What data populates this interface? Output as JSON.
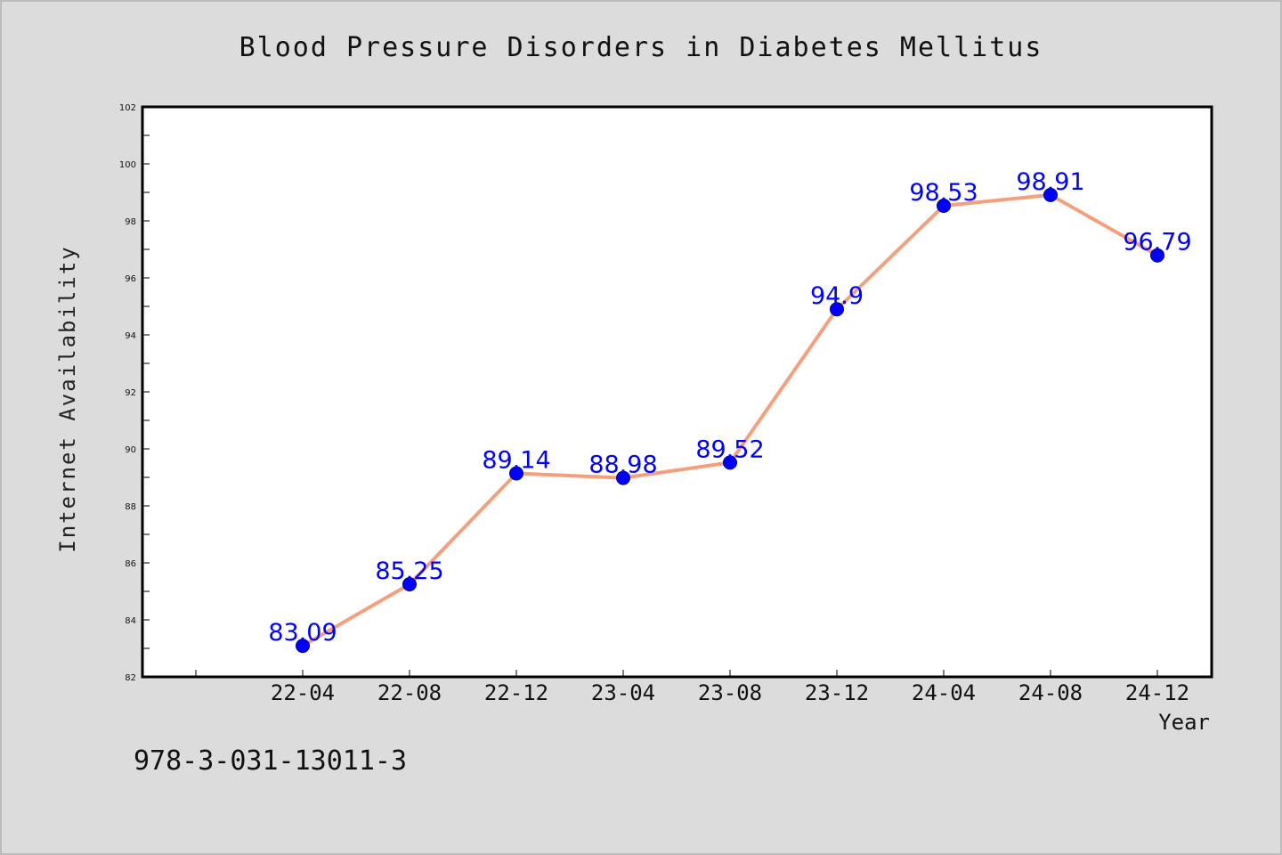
{
  "colors": {
    "background": "#dcdcdc",
    "plot_background": "#ffffff",
    "line": "#f4a07c",
    "marker": "#0000ff",
    "data_label": "#0000ff"
  },
  "footer_text": "978-3-031-13011-3",
  "chart_data": {
    "type": "line",
    "title": "Blood Pressure Disorders in Diabetes Mellitus",
    "xlabel": "Year",
    "ylabel": "Internet Availability",
    "categories": [
      "22-04",
      "22-08",
      "22-12",
      "23-04",
      "23-08",
      "23-12",
      "24-04",
      "24-08",
      "24-12"
    ],
    "series": [
      {
        "values": [
          83.09,
          85.25,
          89.14,
          88.98,
          89.52,
          94.9,
          98.53,
          98.91,
          96.79
        ]
      }
    ],
    "data_labels": [
      "83.09",
      "85.25",
      "89.14",
      "88.98",
      "89.52",
      "94.9",
      "98.53",
      "98.91",
      "96.79"
    ],
    "ylim": [
      82,
      102
    ],
    "yticks": [
      82,
      84,
      86,
      88,
      90,
      92,
      94,
      96,
      98,
      100,
      102
    ],
    "grid": false,
    "legend": "none"
  }
}
